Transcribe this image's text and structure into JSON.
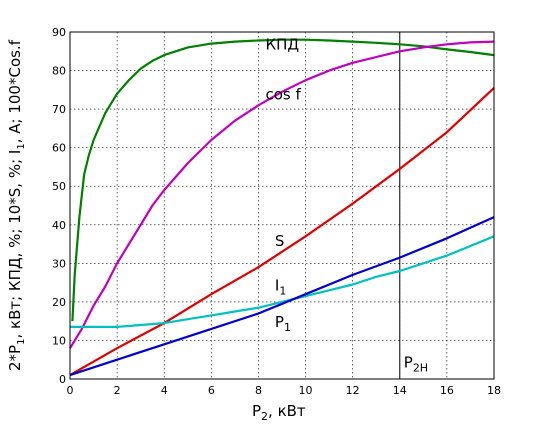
{
  "chart_data": {
    "type": "line",
    "title": "",
    "xlabel": {
      "main": "P",
      "sub": "2",
      "rest": ", кВт"
    },
    "ylabel": "2*P1, кВт; КПД, %; 10*S, %; I1, A; 100*Cos.f",
    "ylabel_parts": [
      {
        "t": "2*P"
      },
      {
        "t": "1",
        "sub": true
      },
      {
        "t": ", кВт; КПД, %; 10*S, %; I"
      },
      {
        "t": "1",
        "sub": true
      },
      {
        "t": ", A; 100*Cos.f"
      }
    ],
    "xlim": [
      0,
      18
    ],
    "ylim": [
      0,
      90
    ],
    "xticks": [
      "0",
      "2",
      "4",
      "6",
      "8",
      "10",
      "12",
      "14",
      "16",
      "18"
    ],
    "yticks": [
      "0",
      "10",
      "20",
      "30",
      "40",
      "50",
      "60",
      "70",
      "80",
      "90"
    ],
    "grid": "dashed",
    "vline": {
      "x": 14,
      "label_main": "P",
      "label_sub": "2Н"
    },
    "series": [
      {
        "name": "КПД",
        "label_main": "КПД",
        "label_sub": "",
        "color": "#008000",
        "x": [
          0.1,
          0.2,
          0.4,
          0.6,
          0.8,
          1,
          1.5,
          2,
          2.5,
          3,
          3.5,
          4,
          5,
          6,
          7,
          8,
          9,
          10,
          11,
          12,
          13,
          14,
          15,
          16,
          17,
          18
        ],
        "y": [
          15,
          27,
          42,
          53,
          58,
          62,
          69,
          74,
          77.5,
          80.5,
          82.5,
          84,
          86,
          87,
          87.5,
          87.8,
          88,
          88,
          87.8,
          87.5,
          87.2,
          86.8,
          86.3,
          85.5,
          84.8,
          84
        ]
      },
      {
        "name": "cos f",
        "label_main": "cos f",
        "label_sub": "",
        "color": "#c000c0",
        "x": [
          0,
          0.5,
          1,
          1.5,
          2,
          2.5,
          3,
          3.5,
          4,
          5,
          6,
          7,
          8,
          9,
          10,
          11,
          12,
          13,
          14,
          15,
          16,
          17,
          18
        ],
        "y": [
          8,
          13,
          19,
          24,
          30,
          35,
          40,
          45,
          49,
          56,
          62,
          67,
          71,
          74.5,
          77.5,
          80,
          82,
          83.5,
          85,
          86,
          86.8,
          87.3,
          87.5
        ]
      },
      {
        "name": "S",
        "label_main": "S",
        "label_sub": "",
        "color": "#e00000",
        "x": [
          0,
          2,
          4,
          6,
          8,
          10,
          12,
          14,
          16,
          18
        ],
        "y": [
          1,
          8,
          14.5,
          22,
          29,
          37,
          45.5,
          54.5,
          64,
          75.5
        ]
      },
      {
        "name": "I1",
        "label_main": "I",
        "label_sub": "1",
        "color": "#00c0c0",
        "x": [
          0,
          0.5,
          1,
          2,
          3,
          4,
          5,
          6,
          7,
          8,
          9,
          10,
          11,
          12,
          13,
          14,
          15,
          16,
          17,
          18
        ],
        "y": [
          13.5,
          13.5,
          13.5,
          13.5,
          14,
          14.5,
          15.5,
          16.5,
          17.5,
          18.5,
          20,
          21.5,
          23,
          24.5,
          26.5,
          28,
          30,
          32,
          34.5,
          37
        ]
      },
      {
        "name": "P1",
        "label_main": "P",
        "label_sub": "1",
        "color": "#0000d0",
        "x": [
          0,
          2,
          4,
          6,
          8,
          10,
          12,
          14,
          16,
          18
        ],
        "y": [
          1,
          5,
          9,
          13,
          17,
          22,
          27,
          31.5,
          36.5,
          42
        ]
      }
    ]
  }
}
